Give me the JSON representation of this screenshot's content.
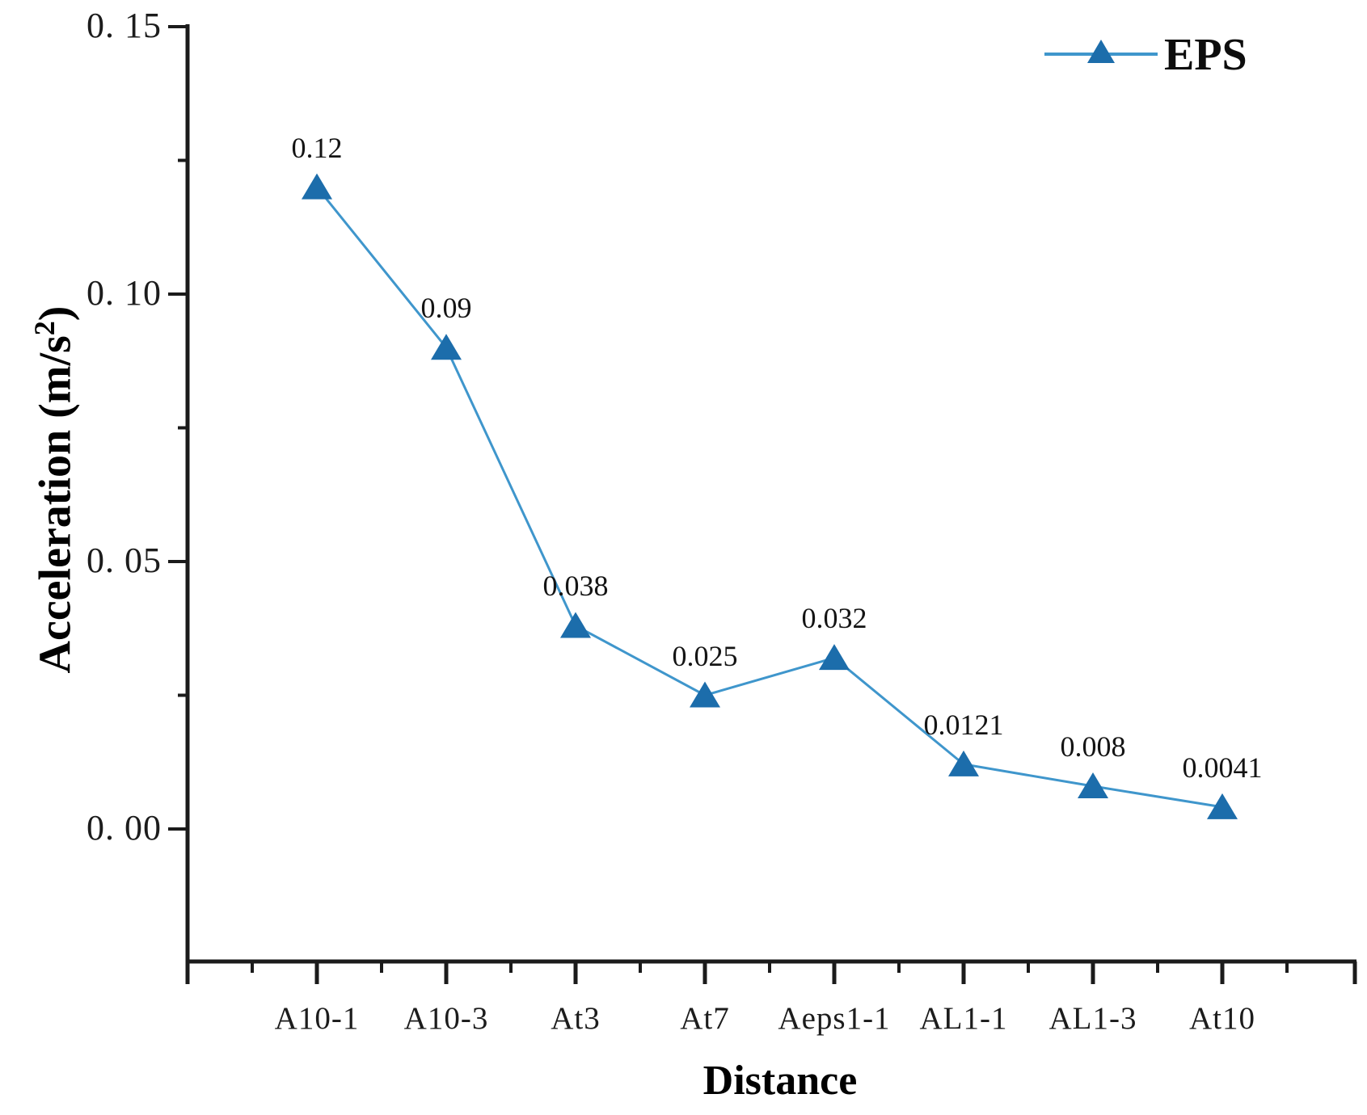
{
  "chart_data": {
    "type": "line",
    "title": "",
    "xlabel": "Distance",
    "ylabel": "Acceleration (m/s²)",
    "categories": [
      "A10-1",
      "A10-3",
      "At3",
      "At7",
      "Aeps1-1",
      "AL1-1",
      "AL1-3",
      "At10"
    ],
    "series": [
      {
        "name": "EPS",
        "values": [
          0.12,
          0.09,
          0.038,
          0.025,
          0.032,
          0.0121,
          0.008,
          0.0041
        ],
        "point_labels": [
          "0.12",
          "0.09",
          "0.038",
          "0.025",
          "0.032",
          "0.0121",
          "0.008",
          "0.0041"
        ],
        "marker": "triangle-up",
        "line_color": "#3f96cc",
        "marker_color": "#1c6dab"
      }
    ],
    "y_ticks": [
      {
        "value": 0.15,
        "label": "0. 15"
      },
      {
        "value": 0.1,
        "label": "0. 10"
      },
      {
        "value": 0.05,
        "label": "0. 05"
      },
      {
        "value": 0.0,
        "label": "0. 00"
      }
    ],
    "y_minor_tick_values": [
      0.125,
      0.075,
      0.025
    ],
    "ylim": [
      -0.025,
      0.15
    ],
    "grid": false,
    "legend_position": "top-right",
    "axis_color": "#1b1b1b"
  },
  "axes": {
    "x_title": "Distance",
    "y_title_text": "Acceleration (m/s",
    "y_title_sup": "2",
    "y_title_close": ")"
  },
  "legend": {
    "label": "EPS"
  }
}
